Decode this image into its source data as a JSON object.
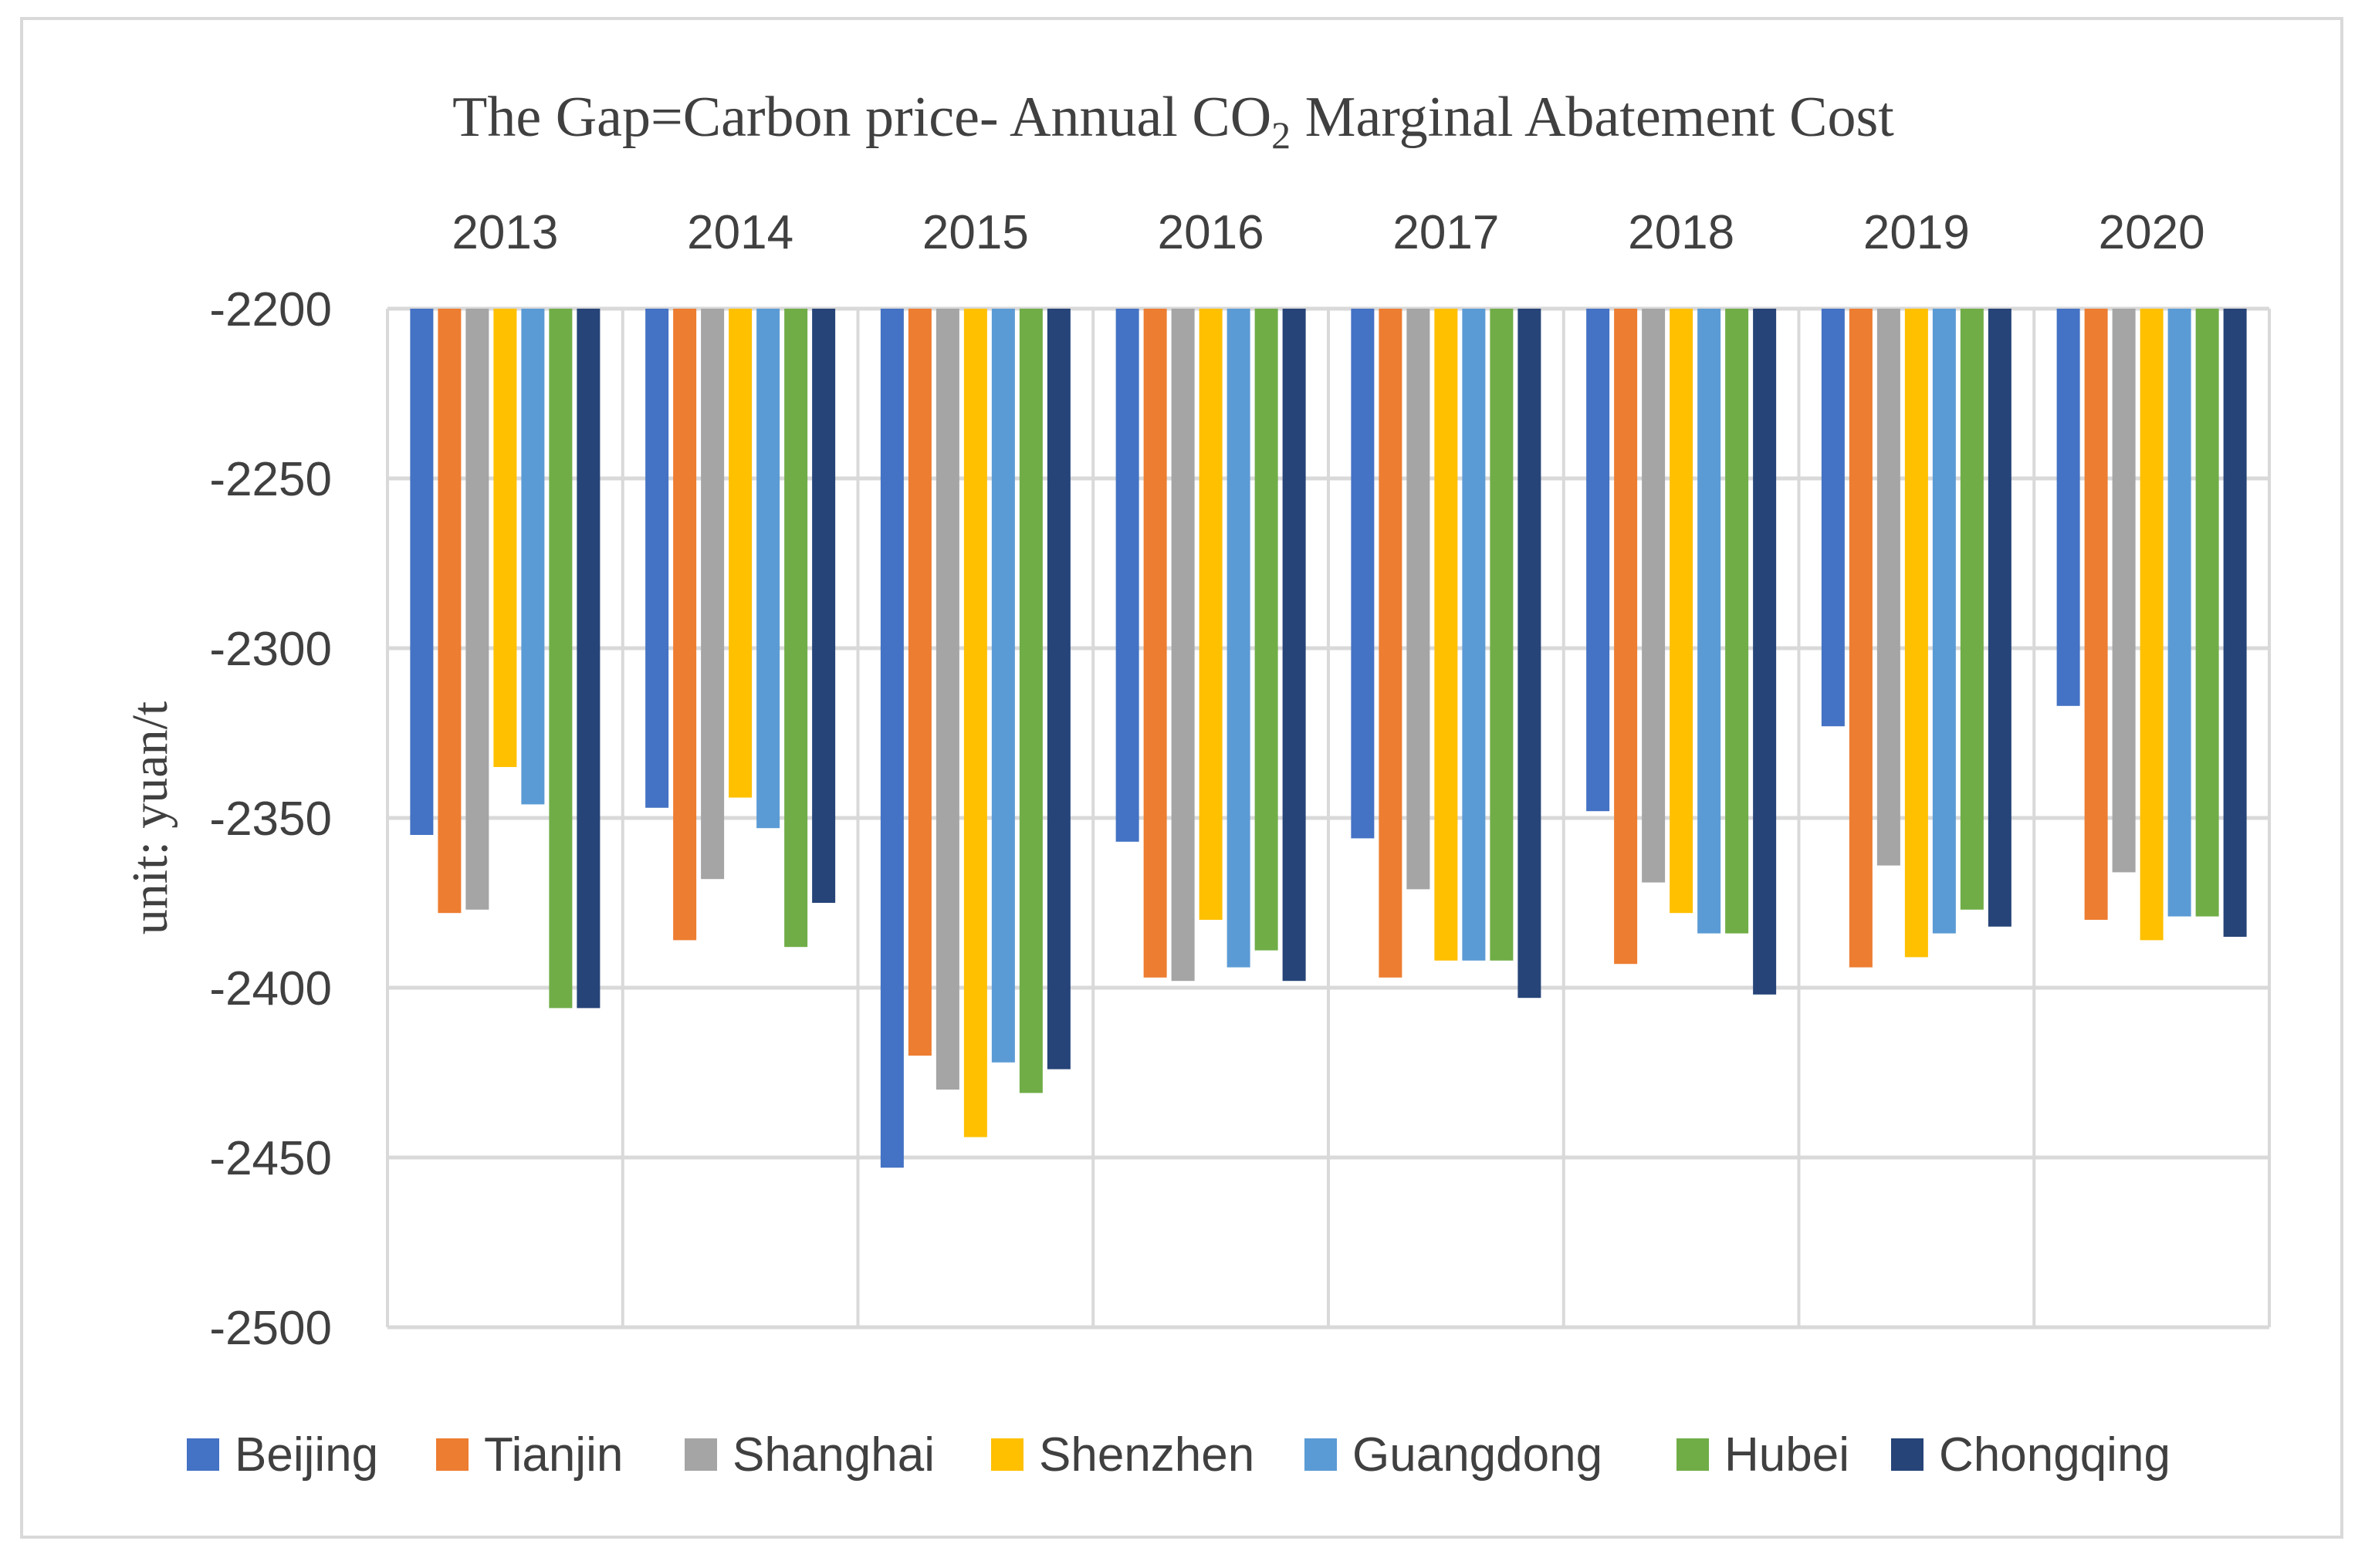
{
  "chart_data": {
    "type": "bar",
    "title": "The Gap=Carbon price- Annual CO",
    "title_subscript": "2",
    "title_rest": " Marginal Abatement Cost",
    "ylabel": "unit: yuan/t",
    "xlabel": "",
    "categories": [
      "2013",
      "2014",
      "2015",
      "2016",
      "2017",
      "2018",
      "2019",
      "2020"
    ],
    "ylim": [
      -2500,
      -2200
    ],
    "yticks": [
      -2200,
      -2250,
      -2300,
      -2350,
      -2400,
      -2450,
      -2500
    ],
    "ytick_labels": [
      "-2200",
      "-2250",
      "-2300",
      "-2350",
      "-2400",
      "-2450",
      "-2500"
    ],
    "x_axis_position": "top",
    "grid": true,
    "legend_position": "bottom",
    "series": [
      {
        "name": "Beijing",
        "color": "#4472C4",
        "values": [
          -2355,
          -2347,
          -2453,
          -2357,
          -2356,
          -2348,
          -2323,
          -2317
        ]
      },
      {
        "name": "Tianjin",
        "color": "#ED7D31",
        "values": [
          -2378,
          -2386,
          -2420,
          -2397,
          -2397,
          -2393,
          -2394,
          -2380
        ]
      },
      {
        "name": "Shanghai",
        "color": "#A5A5A5",
        "values": [
          -2377,
          -2368,
          -2430,
          -2398,
          -2371,
          -2369,
          -2364,
          -2366
        ]
      },
      {
        "name": "Shenzhen",
        "color": "#FFC000",
        "values": [
          -2335,
          -2344,
          -2444,
          -2380,
          -2392,
          -2378,
          -2391,
          -2386
        ]
      },
      {
        "name": "Guangdong",
        "color": "#5B9BD5",
        "values": [
          -2346,
          -2353,
          -2422,
          -2394,
          -2392,
          -2384,
          -2384,
          -2379
        ]
      },
      {
        "name": "Hubei",
        "color": "#70AD47",
        "values": [
          -2406,
          -2388,
          -2431,
          -2389,
          -2392,
          -2384,
          -2377,
          -2379
        ]
      },
      {
        "name": "Chongqing",
        "color": "#264478",
        "values": [
          -2406,
          -2375,
          -2424,
          -2398,
          -2403,
          -2402,
          -2382,
          -2385
        ]
      }
    ]
  }
}
